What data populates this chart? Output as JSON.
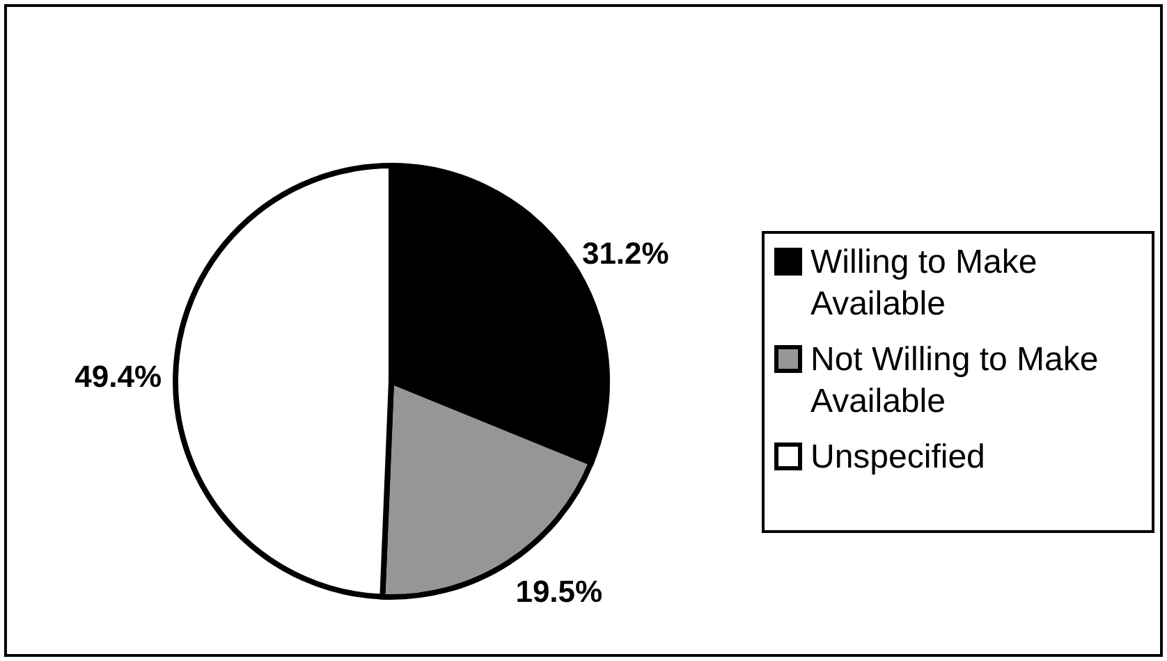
{
  "chart_data": {
    "type": "pie",
    "categories": [
      "Willing to Make Available",
      "Not Willing to Make Available",
      "Unspecified"
    ],
    "values": [
      31.2,
      19.5,
      49.4
    ],
    "value_labels": [
      "31.2%",
      "19.5%",
      "49.4%"
    ],
    "colors": [
      "#000000",
      "#969696",
      "#ffffff"
    ],
    "legend": "right"
  }
}
